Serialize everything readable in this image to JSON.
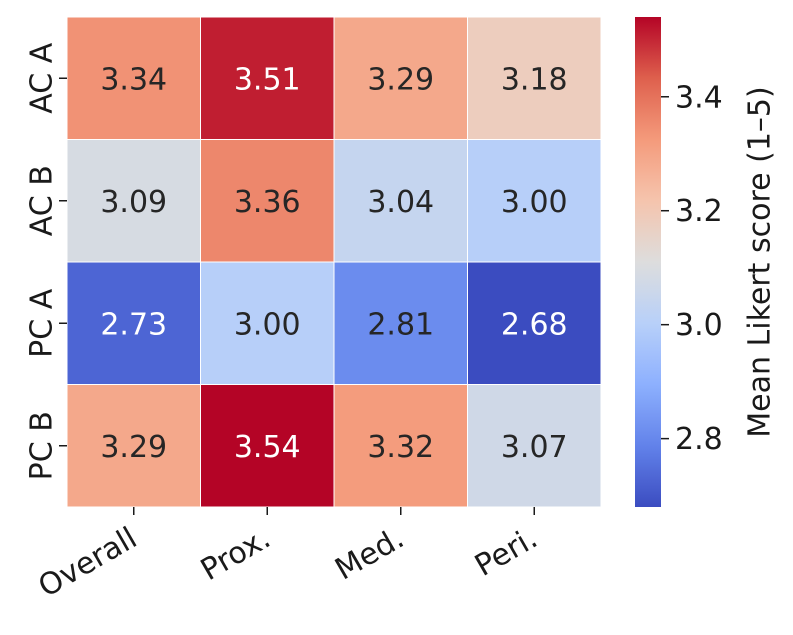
{
  "chart_data": {
    "type": "heatmap",
    "title": "",
    "xlabel": "",
    "ylabel": "",
    "x_categories": [
      "Overall",
      "Prox.",
      "Med.",
      "Peri."
    ],
    "y_categories": [
      "AC A",
      "AC B",
      "PC A",
      "PC B"
    ],
    "values": [
      [
        3.34,
        3.51,
        3.29,
        3.18
      ],
      [
        3.09,
        3.36,
        3.04,
        3.0
      ],
      [
        2.73,
        3.0,
        2.81,
        2.68
      ],
      [
        3.29,
        3.54,
        3.32,
        3.07
      ]
    ],
    "value_labels": [
      [
        "3.34",
        "3.51",
        "3.29",
        "3.18"
      ],
      [
        "3.09",
        "3.36",
        "3.04",
        "3.00"
      ],
      [
        "2.73",
        "3.00",
        "2.81",
        "2.68"
      ],
      [
        "3.29",
        "3.54",
        "3.32",
        "3.07"
      ]
    ],
    "colormap": "coolwarm",
    "vmin": 2.68,
    "vmax": 3.54,
    "colorbar": {
      "label": "Mean Likert score (1–5)",
      "ticks": [
        2.8,
        3.0,
        3.2,
        3.4
      ],
      "tick_labels": [
        "2.8",
        "3.0",
        "3.2",
        "3.4"
      ]
    },
    "grid": false,
    "cell_separator_color": "#ffffff"
  }
}
